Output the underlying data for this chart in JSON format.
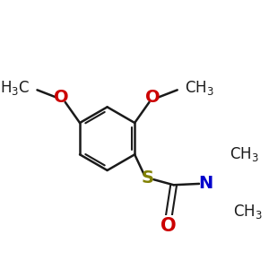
{
  "bg_color": "#ffffff",
  "bond_color": "#1a1a1a",
  "atom_colors": {
    "O": "#cc0000",
    "S": "#808000",
    "N": "#0000cc"
  },
  "font_size": 13,
  "font_size_sub": 11
}
